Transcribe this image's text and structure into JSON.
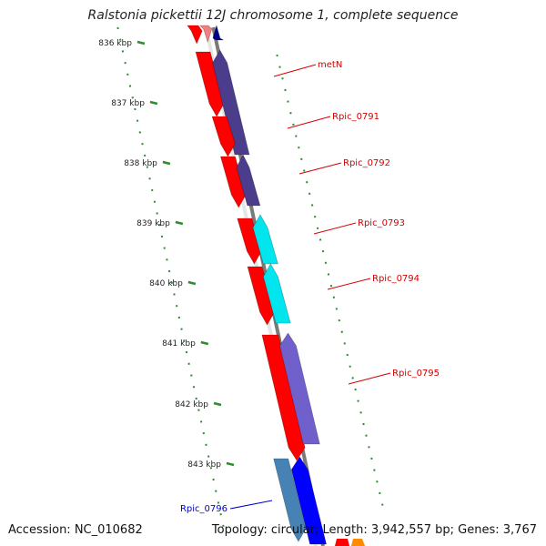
{
  "title": "Ralstonia pickettii 12J chromosome 1, complete sequence",
  "footer": {
    "accession": "Accession: NC_010682",
    "summary": "Topology: circular; Length: 3,942,557 bp; Genes: 3,767"
  },
  "colors": {
    "backbone": "#7a7a7a",
    "ruler": "#2e8b2e",
    "label_red": "#d40000",
    "label_blue": "#0000cc",
    "cds_red": "#ff0000",
    "gene_purple": "#4b3c8c",
    "gene_cyan": "#00e5ee",
    "gene_violet": "#7060cc",
    "gene_steel": "#4682b4",
    "gene_blue": "#0000ff"
  },
  "ruler": {
    "ticks": [
      {
        "kbp": 836,
        "label": "836 kbp"
      },
      {
        "kbp": 837,
        "label": "837 kbp"
      },
      {
        "kbp": 838,
        "label": "838 kbp"
      },
      {
        "kbp": 839,
        "label": "839 kbp"
      },
      {
        "kbp": 840,
        "label": "840 kbp"
      },
      {
        "kbp": 841,
        "label": "841 kbp"
      },
      {
        "kbp": 842,
        "label": "842 kbp"
      },
      {
        "kbp": 843,
        "label": "843 kbp"
      }
    ]
  },
  "labels": [
    {
      "text": "metN",
      "color": "red"
    },
    {
      "text": "Rpic_0791",
      "color": "red"
    },
    {
      "text": "Rpic_0792",
      "color": "red"
    },
    {
      "text": "Rpic_0793",
      "color": "red"
    },
    {
      "text": "Rpic_0794",
      "color": "red"
    },
    {
      "text": "Rpic_0795",
      "color": "red"
    },
    {
      "text": "Rpic_0796",
      "color": "blue"
    }
  ]
}
